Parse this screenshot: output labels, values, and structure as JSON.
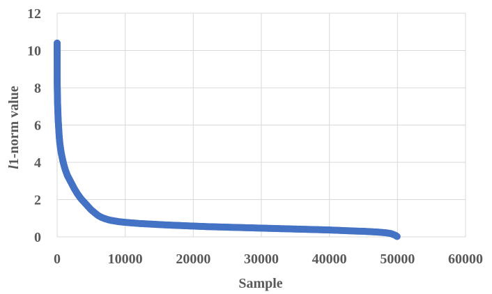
{
  "chart_data": {
    "type": "scatter",
    "title": "",
    "xlabel": "Sample",
    "ylabel_prefix": "l",
    "ylabel_rest": "1-norm value",
    "xlim": [
      0,
      60000
    ],
    "ylim": [
      0,
      12
    ],
    "xticks": [
      0,
      10000,
      20000,
      30000,
      40000,
      50000,
      60000
    ],
    "yticks": [
      0,
      2,
      4,
      6,
      8,
      10,
      12
    ],
    "grid": true,
    "legend": "none",
    "color": "#4472c4",
    "series": [
      {
        "x": [
          0,
          0,
          0,
          10,
          20,
          30,
          40,
          50,
          60,
          80,
          100,
          120,
          150,
          200,
          250,
          300,
          400,
          500,
          600,
          800,
          1000,
          1200,
          1500,
          2000,
          2500,
          3000,
          3500,
          4000,
          4500,
          5000,
          5500,
          6000,
          6500,
          7000,
          7500,
          8000,
          8500,
          9000,
          9500,
          10000,
          11000,
          12000,
          14000,
          16000,
          18000,
          20000,
          22000,
          24000,
          26000,
          28000,
          30000,
          32000,
          34000,
          36000,
          38000,
          40000,
          42000,
          44000,
          45000,
          46000,
          47000,
          48000,
          48500,
          49000,
          49300,
          49600,
          49800,
          49950
        ],
        "y": [
          10.4,
          10.0,
          9.75,
          8.25,
          8.0,
          7.8,
          7.6,
          7.4,
          7.2,
          7.0,
          6.8,
          6.6,
          6.3,
          6.0,
          5.7,
          5.4,
          5.0,
          4.75,
          4.5,
          4.15,
          3.85,
          3.6,
          3.3,
          2.95,
          2.6,
          2.3,
          2.05,
          1.85,
          1.65,
          1.45,
          1.3,
          1.15,
          1.05,
          0.98,
          0.92,
          0.88,
          0.85,
          0.82,
          0.8,
          0.78,
          0.75,
          0.72,
          0.68,
          0.64,
          0.61,
          0.58,
          0.55,
          0.53,
          0.51,
          0.49,
          0.47,
          0.45,
          0.43,
          0.41,
          0.39,
          0.37,
          0.34,
          0.31,
          0.3,
          0.28,
          0.26,
          0.23,
          0.21,
          0.18,
          0.14,
          0.1,
          0.06,
          0.02
        ]
      }
    ]
  }
}
